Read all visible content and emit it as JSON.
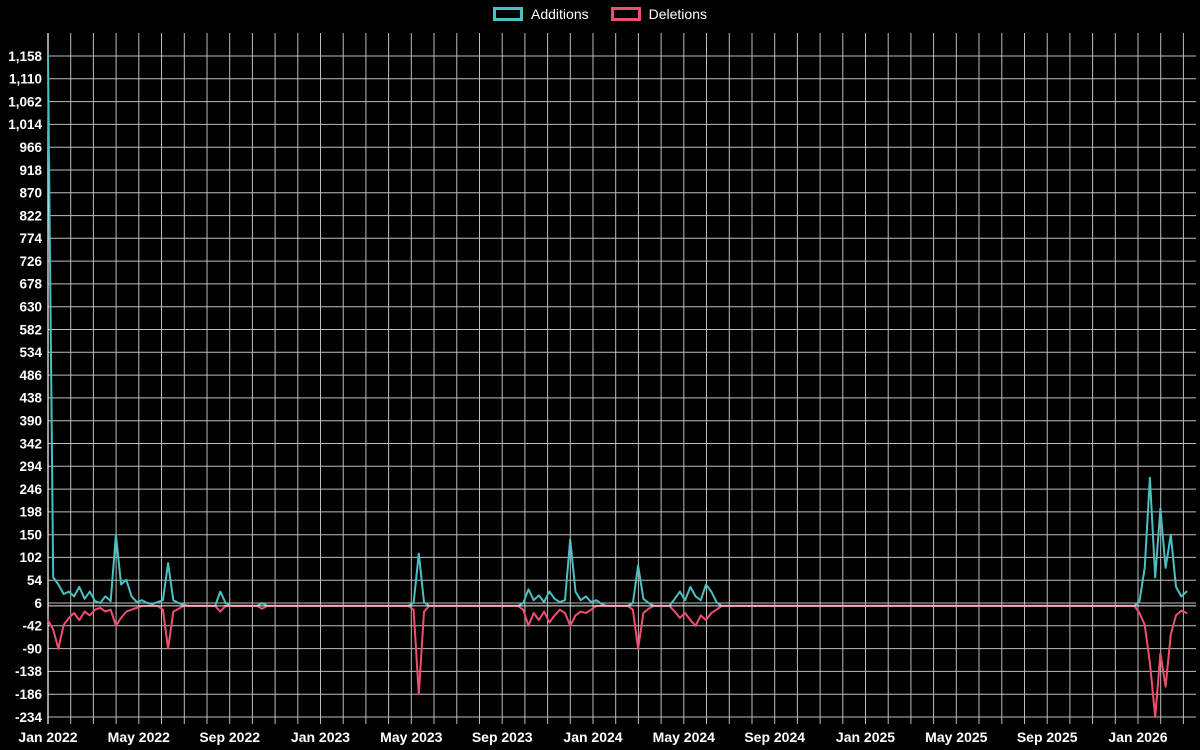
{
  "colors": {
    "background": "#000000",
    "grid": "#bdbdbd",
    "axis": "#ffffff",
    "text": "#ffffff",
    "zero_line": "#ffffff"
  },
  "legend": {
    "items": [
      {
        "label": "Additions"
      },
      {
        "label": "Deletions"
      }
    ]
  },
  "chart_data": {
    "type": "line",
    "title": "",
    "interval": "week",
    "total_weeks": 219,
    "x_axis": {
      "tick_labels": [
        "Jan 2022",
        "May 2022",
        "Sep 2022",
        "Jan 2023",
        "May 2023",
        "Sep 2023",
        "Jan 2024",
        "May 2024",
        "Sep 2024",
        "Jan 2025",
        "May 2025",
        "Sep 2025",
        "Jan 2026"
      ],
      "months_per_tick": 4,
      "gridline_interval": "month"
    },
    "y_axis": {
      "min": -234,
      "max": 1158,
      "tick_step": 48,
      "tick_labels": [
        "1,158",
        "1,110",
        "1,062",
        "1,014",
        "966",
        "918",
        "870",
        "822",
        "774",
        "726",
        "678",
        "630",
        "582",
        "534",
        "486",
        "438",
        "390",
        "342",
        "294",
        "246",
        "198",
        "150",
        "102",
        "54",
        "6",
        "-42",
        "-90",
        "-138",
        "-186",
        "-234"
      ]
    },
    "baseline_value": 0,
    "series": [
      {
        "name": "Additions",
        "color": "#4bc0c0",
        "default_value": 0,
        "points": [
          [
            0,
            1158
          ],
          [
            1,
            60
          ],
          [
            2,
            45
          ],
          [
            3,
            25
          ],
          [
            4,
            30
          ],
          [
            5,
            20
          ],
          [
            6,
            40
          ],
          [
            7,
            15
          ],
          [
            8,
            30
          ],
          [
            9,
            10
          ],
          [
            10,
            6
          ],
          [
            11,
            20
          ],
          [
            12,
            10
          ],
          [
            13,
            150
          ],
          [
            14,
            45
          ],
          [
            15,
            55
          ],
          [
            16,
            20
          ],
          [
            17,
            8
          ],
          [
            18,
            12
          ],
          [
            19,
            6
          ],
          [
            20,
            4
          ],
          [
            21,
            8
          ],
          [
            22,
            12
          ],
          [
            23,
            90
          ],
          [
            24,
            12
          ],
          [
            25,
            6
          ],
          [
            26,
            2
          ],
          [
            33,
            30
          ],
          [
            34,
            6
          ],
          [
            41,
            6
          ],
          [
            70,
            6
          ],
          [
            71,
            110
          ],
          [
            72,
            8
          ],
          [
            91,
            6
          ],
          [
            92,
            35
          ],
          [
            93,
            12
          ],
          [
            94,
            22
          ],
          [
            95,
            8
          ],
          [
            96,
            30
          ],
          [
            97,
            15
          ],
          [
            98,
            8
          ],
          [
            99,
            12
          ],
          [
            100,
            140
          ],
          [
            101,
            30
          ],
          [
            102,
            12
          ],
          [
            103,
            20
          ],
          [
            104,
            8
          ],
          [
            105,
            12
          ],
          [
            106,
            4
          ],
          [
            112,
            6
          ],
          [
            113,
            85
          ],
          [
            114,
            15
          ],
          [
            115,
            6
          ],
          [
            120,
            15
          ],
          [
            121,
            30
          ],
          [
            122,
            12
          ],
          [
            123,
            40
          ],
          [
            124,
            20
          ],
          [
            125,
            12
          ],
          [
            126,
            45
          ],
          [
            127,
            30
          ],
          [
            128,
            8
          ],
          [
            209,
            10
          ],
          [
            210,
            80
          ],
          [
            211,
            270
          ],
          [
            212,
            60
          ],
          [
            213,
            205
          ],
          [
            214,
            80
          ],
          [
            215,
            150
          ],
          [
            216,
            40
          ],
          [
            217,
            20
          ],
          [
            218,
            30
          ]
        ]
      },
      {
        "name": "Deletions",
        "color": "#ef4f6e",
        "default_value": 0,
        "points": [
          [
            0,
            -30
          ],
          [
            1,
            -50
          ],
          [
            2,
            -90
          ],
          [
            3,
            -40
          ],
          [
            4,
            -25
          ],
          [
            5,
            -15
          ],
          [
            6,
            -30
          ],
          [
            7,
            -12
          ],
          [
            8,
            -20
          ],
          [
            9,
            -8
          ],
          [
            10,
            -4
          ],
          [
            11,
            -12
          ],
          [
            12,
            -8
          ],
          [
            13,
            -42
          ],
          [
            14,
            -25
          ],
          [
            15,
            -12
          ],
          [
            16,
            -8
          ],
          [
            17,
            -4
          ],
          [
            22,
            -8
          ],
          [
            23,
            -90
          ],
          [
            24,
            -12
          ],
          [
            25,
            -6
          ],
          [
            33,
            -12
          ],
          [
            41,
            -6
          ],
          [
            70,
            -8
          ],
          [
            71,
            -186
          ],
          [
            72,
            -12
          ],
          [
            91,
            -8
          ],
          [
            92,
            -42
          ],
          [
            93,
            -15
          ],
          [
            94,
            -30
          ],
          [
            95,
            -12
          ],
          [
            96,
            -35
          ],
          [
            97,
            -20
          ],
          [
            98,
            -8
          ],
          [
            99,
            -15
          ],
          [
            100,
            -42
          ],
          [
            101,
            -20
          ],
          [
            102,
            -12
          ],
          [
            103,
            -15
          ],
          [
            104,
            -8
          ],
          [
            112,
            -8
          ],
          [
            113,
            -90
          ],
          [
            114,
            -15
          ],
          [
            115,
            -6
          ],
          [
            120,
            -12
          ],
          [
            121,
            -25
          ],
          [
            122,
            -15
          ],
          [
            123,
            -30
          ],
          [
            124,
            -42
          ],
          [
            125,
            -20
          ],
          [
            126,
            -30
          ],
          [
            127,
            -15
          ],
          [
            128,
            -8
          ],
          [
            209,
            -15
          ],
          [
            210,
            -40
          ],
          [
            211,
            -120
          ],
          [
            212,
            -234
          ],
          [
            213,
            -100
          ],
          [
            214,
            -170
          ],
          [
            215,
            -60
          ],
          [
            216,
            -20
          ],
          [
            217,
            -10
          ],
          [
            218,
            -15
          ]
        ]
      }
    ]
  }
}
